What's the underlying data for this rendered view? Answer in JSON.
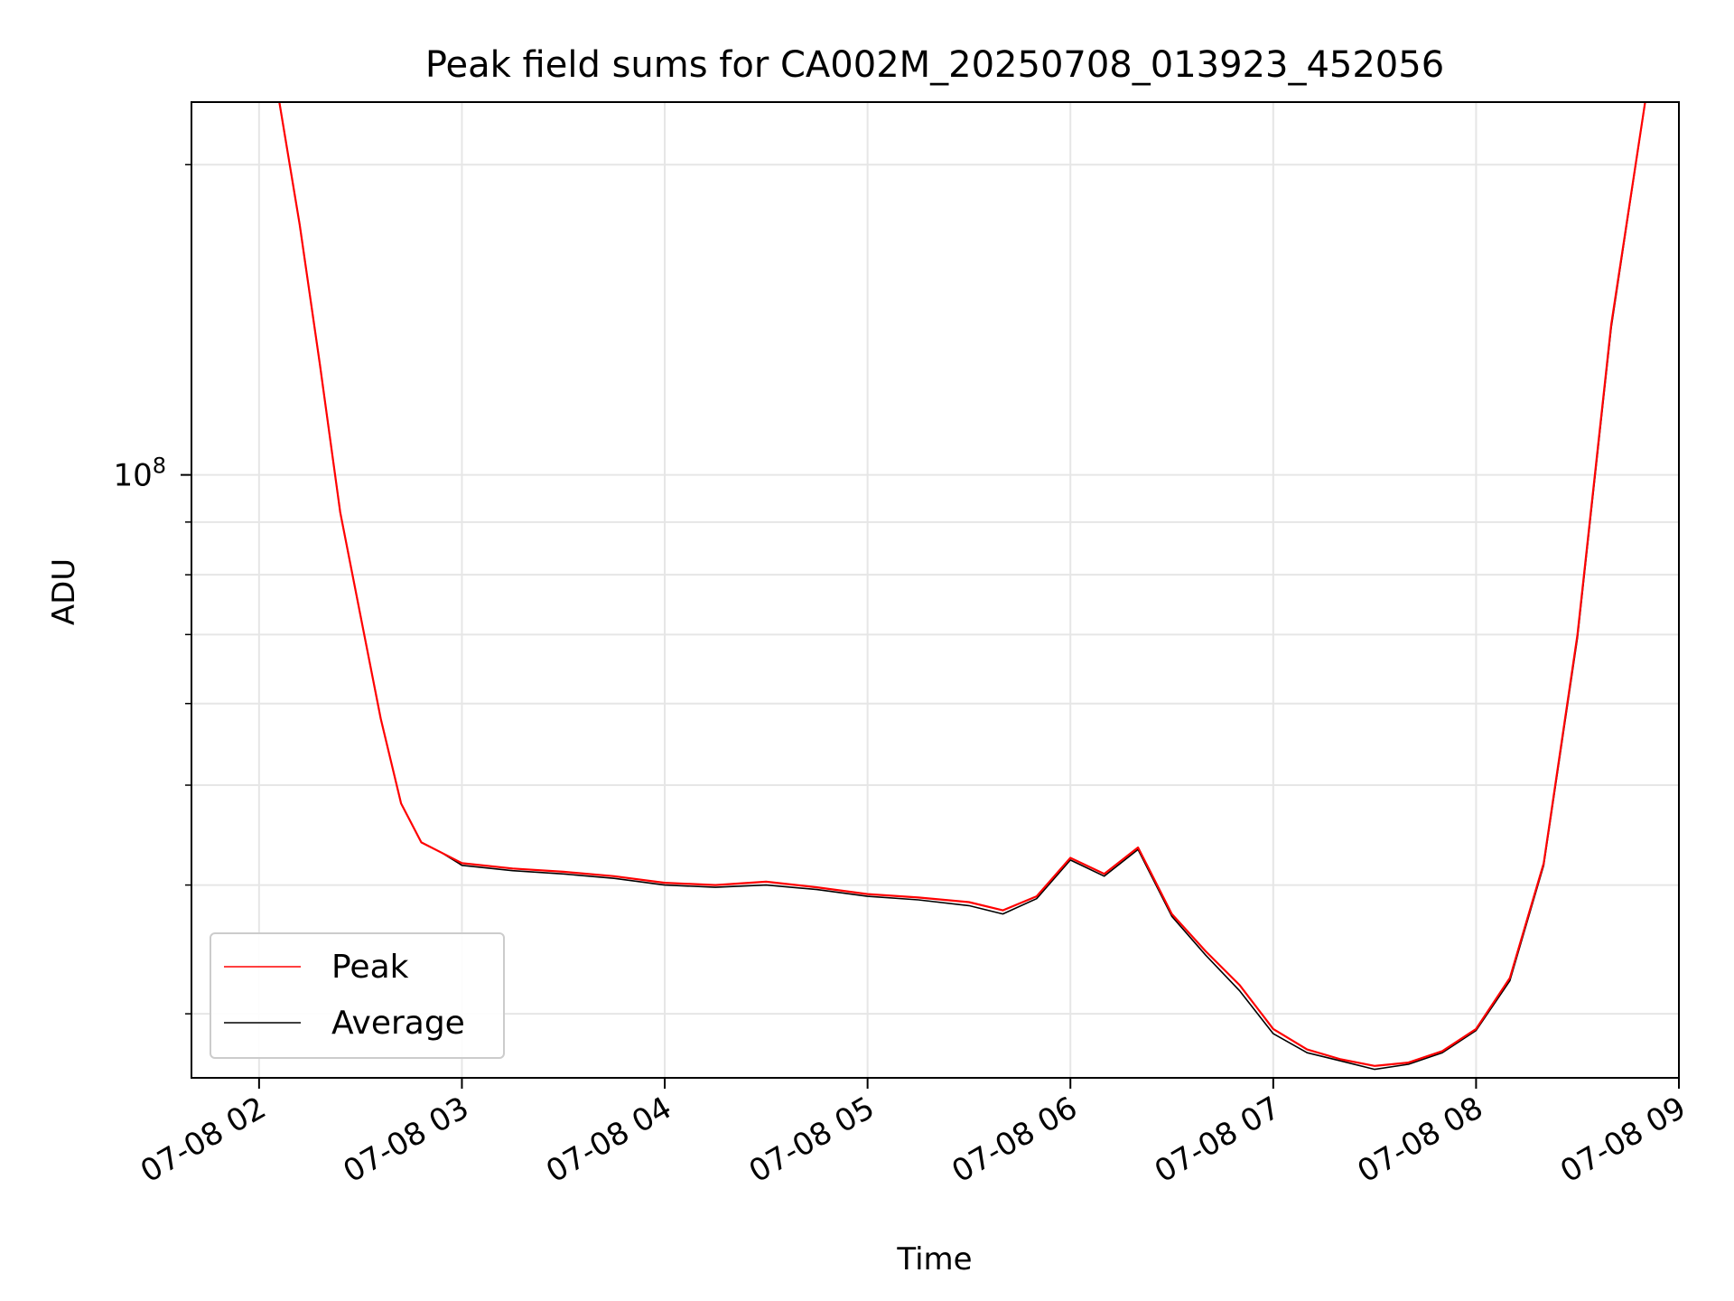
{
  "chart_data": {
    "type": "line",
    "title": "Peak field sums for CA002M_20250708_013923_452056",
    "xlabel": "Time",
    "ylabel": "ADU",
    "xscale": "time",
    "yscale": "log",
    "xlim": [
      "07-08 01:40",
      "07-08 09:00"
    ],
    "ylim": [
      26000000,
      230000000
    ],
    "x_ticks": [
      "07-08 02",
      "07-08 03",
      "07-08 04",
      "07-08 05",
      "07-08 06",
      "07-08 07",
      "07-08 08",
      "07-08 09"
    ],
    "y_ticks": [
      "10^8"
    ],
    "grid": true,
    "legend": {
      "position": "lower-left"
    },
    "series": [
      {
        "name": "Peak",
        "color": "#ff0000",
        "x": [
          "07-08 02:06",
          "07-08 02:12",
          "07-08 02:18",
          "07-08 02:24",
          "07-08 02:30",
          "07-08 02:36",
          "07-08 02:42",
          "07-08 02:48",
          "07-08 02:54",
          "07-08 03:00",
          "07-08 03:15",
          "07-08 03:30",
          "07-08 03:45",
          "07-08 04:00",
          "07-08 04:15",
          "07-08 04:30",
          "07-08 04:45",
          "07-08 05:00",
          "07-08 05:15",
          "07-08 05:30",
          "07-08 05:40",
          "07-08 05:50",
          "07-08 06:00",
          "07-08 06:10",
          "07-08 06:20",
          "07-08 06:30",
          "07-08 06:40",
          "07-08 06:50",
          "07-08 07:00",
          "07-08 07:10",
          "07-08 07:20",
          "07-08 07:30",
          "07-08 07:40",
          "07-08 07:50",
          "07-08 08:00",
          "07-08 08:10",
          "07-08 08:20",
          "07-08 08:30",
          "07-08 08:40",
          "07-08 08:50"
        ],
        "values": [
          230000000,
          175000000,
          128000000,
          92000000,
          73000000,
          58000000,
          48000000,
          44000000,
          43000000,
          42000000,
          41500000,
          41200000,
          40800000,
          40200000,
          40000000,
          40300000,
          39800000,
          39200000,
          38900000,
          38500000,
          37800000,
          39000000,
          42500000,
          41000000,
          43500000,
          37500000,
          34500000,
          32000000,
          29000000,
          27700000,
          27100000,
          26700000,
          26900000,
          27600000,
          29000000,
          32500000,
          42000000,
          70000000,
          140000000,
          230000000
        ]
      },
      {
        "name": "Average",
        "color": "#000000",
        "x": [
          "07-08 02:06",
          "07-08 02:12",
          "07-08 02:18",
          "07-08 02:24",
          "07-08 02:30",
          "07-08 02:36",
          "07-08 02:42",
          "07-08 02:48",
          "07-08 02:54",
          "07-08 03:00",
          "07-08 03:15",
          "07-08 03:30",
          "07-08 03:45",
          "07-08 04:00",
          "07-08 04:15",
          "07-08 04:30",
          "07-08 04:45",
          "07-08 05:00",
          "07-08 05:15",
          "07-08 05:30",
          "07-08 05:40",
          "07-08 05:50",
          "07-08 06:00",
          "07-08 06:10",
          "07-08 06:20",
          "07-08 06:30",
          "07-08 06:40",
          "07-08 06:50",
          "07-08 07:00",
          "07-08 07:10",
          "07-08 07:20",
          "07-08 07:30",
          "07-08 07:40",
          "07-08 07:50",
          "07-08 08:00",
          "07-08 08:10",
          "07-08 08:20",
          "07-08 08:30",
          "07-08 08:40",
          "07-08 08:50"
        ],
        "values": [
          230000000,
          175000000,
          128000000,
          92000000,
          73000000,
          58000000,
          48000000,
          44000000,
          43000000,
          41800000,
          41300000,
          41000000,
          40600000,
          40000000,
          39800000,
          40000000,
          39600000,
          39000000,
          38700000,
          38200000,
          37500000,
          38800000,
          42300000,
          40800000,
          43300000,
          37300000,
          34200000,
          31600000,
          28700000,
          27500000,
          27000000,
          26500000,
          26800000,
          27500000,
          28900000,
          32300000,
          41800000,
          69500000,
          139000000,
          230000000
        ]
      }
    ]
  }
}
